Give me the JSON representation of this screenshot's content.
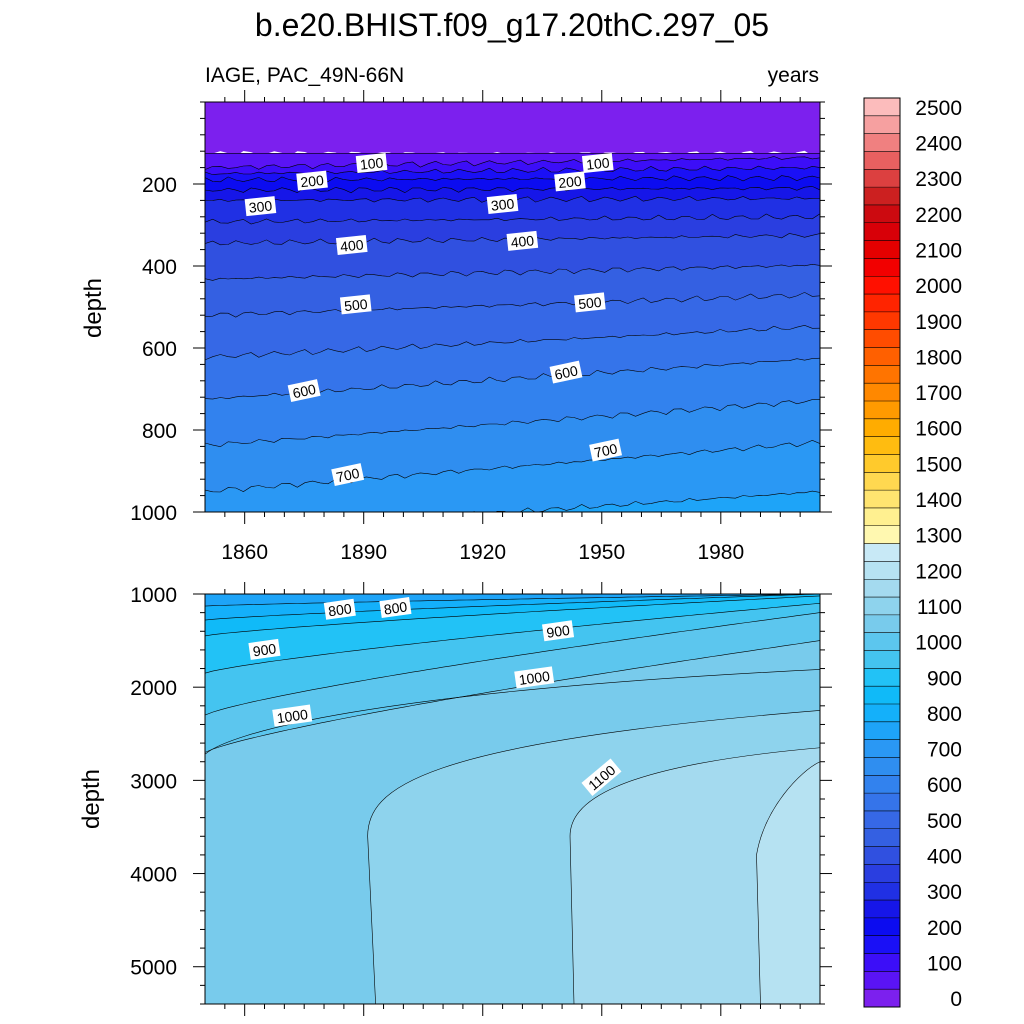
{
  "chart_data": {
    "type": "contour",
    "title": "b.e20.BHIST.f09_g17.20thC.297_05",
    "left_string": "IAGE, PAC_49N-66N",
    "right_string": "years",
    "colorbar": {
      "levels": [
        0,
        100,
        200,
        300,
        400,
        500,
        600,
        700,
        800,
        900,
        1000,
        1100,
        1200,
        1300,
        1400,
        1500,
        1600,
        1700,
        1800,
        1900,
        2000,
        2100,
        2200,
        2300,
        2400,
        2500
      ],
      "labels": [
        "0",
        "100",
        "200",
        "300",
        "400",
        "500",
        "600",
        "700",
        "800",
        "900",
        "1000",
        "1100",
        "1200",
        "1300",
        "1400",
        "1500",
        "1600",
        "1700",
        "1800",
        "1900",
        "2000",
        "2100",
        "2200",
        "2300",
        "2400",
        "2500"
      ],
      "colors": [
        "#7c20ee",
        "#5a14f5",
        "#3c0ef8",
        "#1a10f6",
        "#0c0cf0",
        "#1616e8",
        "#2030e4",
        "#2a3ee0",
        "#3050e0",
        "#3460e2",
        "#3668e6",
        "#3574ea",
        "#3282ee",
        "#2f8ef0",
        "#2a98f4",
        "#1ea4f8",
        "#14b0fa",
        "#10baf8",
        "#22c2f6",
        "#44c4f0",
        "#5cc6ee",
        "#78cbec",
        "#8ed3ed",
        "#a4daef",
        "#b6e2f2",
        "#c8e9f6",
        "#fff8b0",
        "#fff090",
        "#ffe470",
        "#ffd850",
        "#ffca2c",
        "#ffbc10",
        "#ffac00",
        "#ff9a00",
        "#ff8800",
        "#ff7400",
        "#ff6000",
        "#ff4c00",
        "#ff3800",
        "#ff2400",
        "#ff1000",
        "#f20000",
        "#e40000",
        "#d80008",
        "#cc0a10",
        "#cc2020",
        "#dc4040",
        "#e86060",
        "#f08080",
        "#f6a0a0",
        "#fcbcbc"
      ]
    },
    "panels": [
      {
        "name": "upper",
        "ylabel": "depth",
        "xlim": [
          1850,
          2005
        ],
        "ylim": [
          1000,
          0
        ],
        "xticks": [
          1860,
          1890,
          1920,
          1950,
          1980
        ],
        "xtick_labels": [
          "1860",
          "1890",
          "1920",
          "1950",
          "1980"
        ],
        "yticks": [
          200,
          400,
          600,
          800,
          1000
        ],
        "ytick_labels": [
          "200",
          "400",
          "600",
          "800",
          "1000"
        ],
        "contours": [
          {
            "level": 100,
            "depth_start": 160,
            "depth_end": 135
          },
          {
            "level": 200,
            "depth_start": 190,
            "depth_end": 185
          },
          {
            "level": 300,
            "depth_start": 240,
            "depth_end": 235
          },
          {
            "level": 400,
            "depth_start": 345,
            "depth_end": 325
          },
          {
            "level": 500,
            "depth_start": 520,
            "depth_end": 470
          },
          {
            "level": 600,
            "depth_start": 725,
            "depth_end": 625
          },
          {
            "level": 700,
            "depth_start": 950,
            "depth_end": 830
          }
        ],
        "contour_labels": [
          {
            "text": "100",
            "x": 1892,
            "y": 150
          },
          {
            "text": "100",
            "x": 1949,
            "y": 150
          },
          {
            "text": "200",
            "x": 1877,
            "y": 193
          },
          {
            "text": "200",
            "x": 1942,
            "y": 195
          },
          {
            "text": "300",
            "x": 1864,
            "y": 255
          },
          {
            "text": "300",
            "x": 1925,
            "y": 250
          },
          {
            "text": "400",
            "x": 1887,
            "y": 350
          },
          {
            "text": "400",
            "x": 1930,
            "y": 340
          },
          {
            "text": "500",
            "x": 1888,
            "y": 495
          },
          {
            "text": "500",
            "x": 1947,
            "y": 490
          },
          {
            "text": "600",
            "x": 1875,
            "y": 705
          },
          {
            "text": "600",
            "x": 1941,
            "y": 660
          },
          {
            "text": "700",
            "x": 1886,
            "y": 910
          },
          {
            "text": "700",
            "x": 1951,
            "y": 850
          }
        ]
      },
      {
        "name": "lower",
        "ylabel": "depth",
        "xlim": [
          1850,
          2005
        ],
        "ylim": [
          5400,
          1000
        ],
        "yticks": [
          1000,
          2000,
          3000,
          4000,
          5000
        ],
        "ytick_labels": [
          "1000",
          "2000",
          "3000",
          "4000",
          "5000"
        ],
        "contour_labels": [
          {
            "text": "800",
            "x": 1884,
            "y": 1170
          },
          {
            "text": "800",
            "x": 1898,
            "y": 1150
          },
          {
            "text": "900",
            "x": 1865,
            "y": 1600
          },
          {
            "text": "900",
            "x": 1939,
            "y": 1400
          },
          {
            "text": "1000",
            "x": 1872,
            "y": 2310
          },
          {
            "text": "1000",
            "x": 1933,
            "y": 1900
          },
          {
            "text": "1100",
            "x": 1950,
            "y": 2970
          }
        ]
      }
    ]
  }
}
